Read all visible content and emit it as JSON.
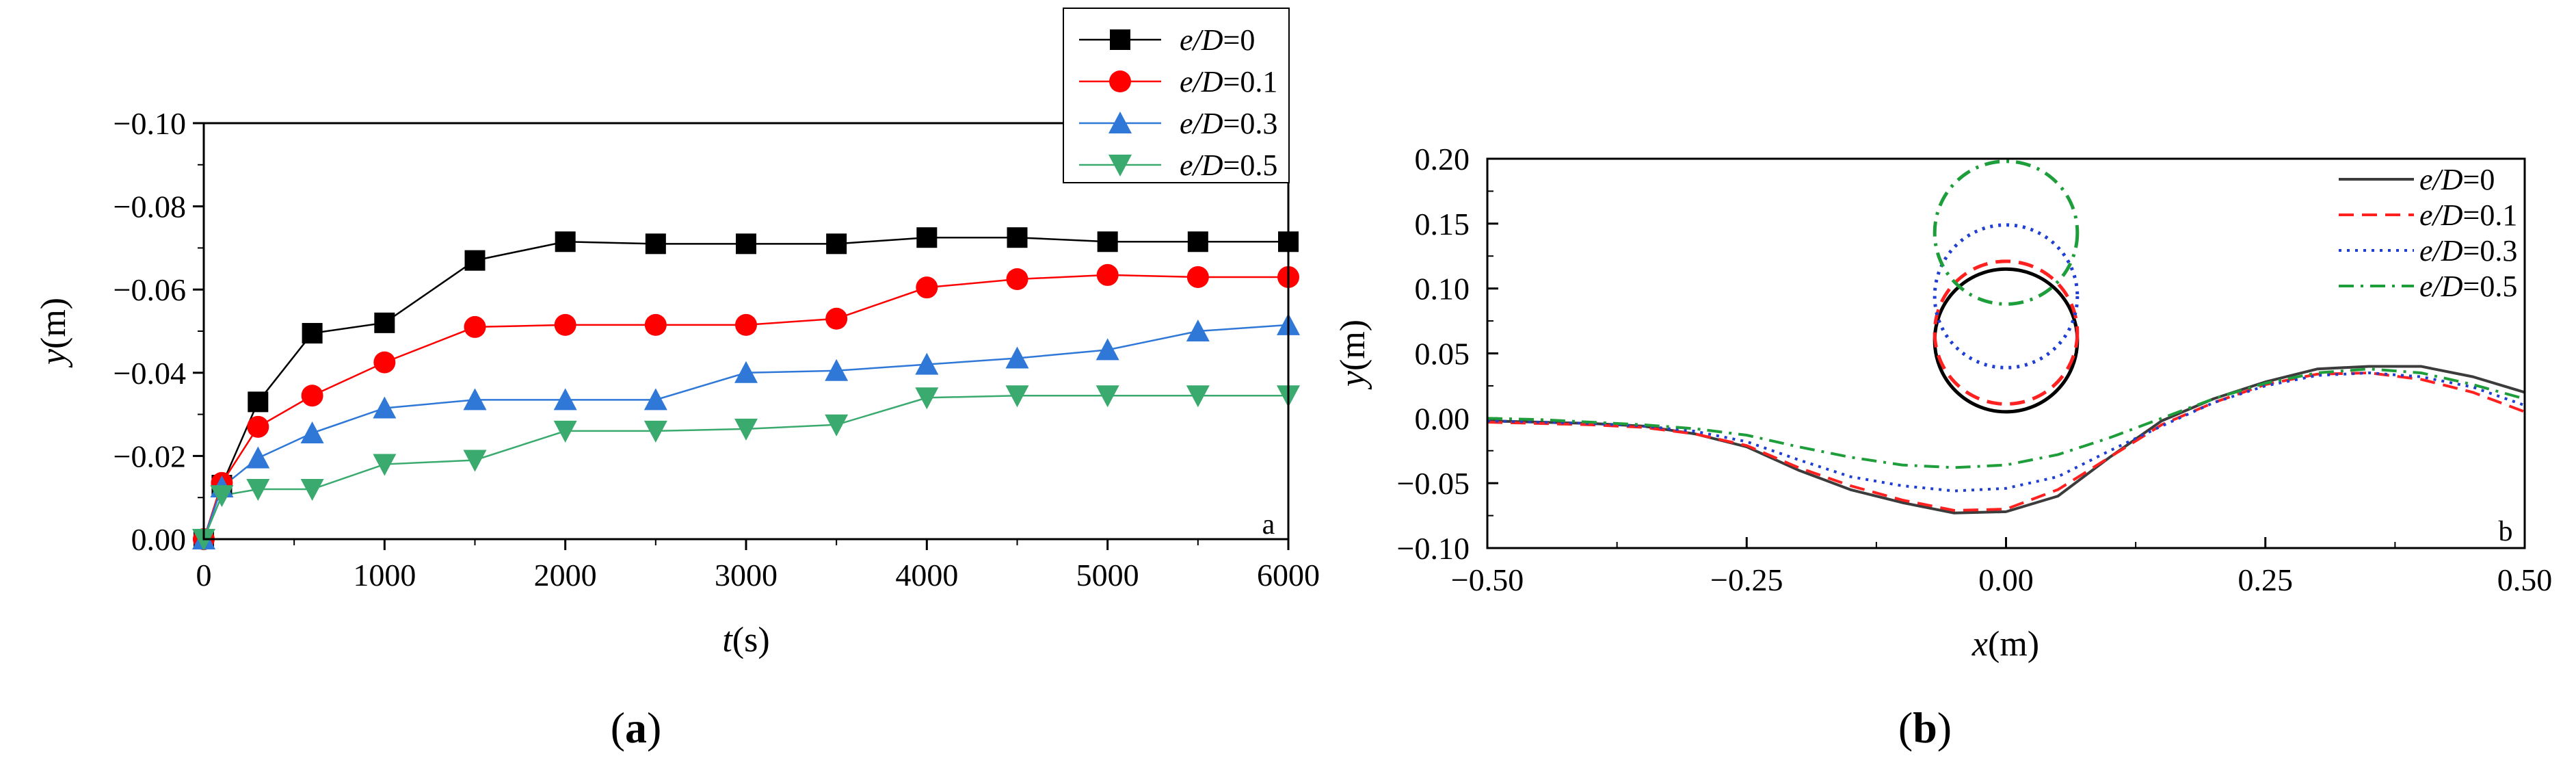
{
  "chart_data": [
    {
      "type": "line",
      "panel_tag": "a",
      "caption": {
        "open": "(",
        "letter": "a",
        "close": ")"
      },
      "xlabel": {
        "var": "t",
        "unit": "(s)"
      },
      "ylabel": {
        "var": "y",
        "unit": "(m)"
      },
      "xlim": [
        0,
        6000
      ],
      "ylim": [
        0.0,
        -0.1
      ],
      "xticks": [
        0,
        1000,
        2000,
        3000,
        4000,
        5000,
        6000
      ],
      "xtick_labels": [
        "0",
        "1000",
        "2000",
        "3000",
        "4000",
        "5000",
        "6000"
      ],
      "yticks": [
        0.0,
        -0.02,
        -0.04,
        -0.06,
        -0.08,
        -0.1
      ],
      "ytick_labels": [
        "0.00",
        "−0.02",
        "−0.04",
        "−0.06",
        "−0.08",
        "−0.10"
      ],
      "legend_position": "top-right",
      "x": [
        0,
        100,
        300,
        600,
        1000,
        1500,
        2000,
        2500,
        3000,
        3500,
        4000,
        4500,
        5000,
        5500,
        6000
      ],
      "series": [
        {
          "name": "e/D=0",
          "label_var": "e/D",
          "label_val": "=0",
          "color": "#000000",
          "marker": "square",
          "values": [
            0.0,
            -0.013,
            -0.033,
            -0.0495,
            -0.052,
            -0.067,
            -0.0715,
            -0.071,
            -0.071,
            -0.071,
            -0.0725,
            -0.0725,
            -0.0715,
            -0.0715,
            -0.0715
          ]
        },
        {
          "name": "e/D=0.1",
          "label_var": "e/D",
          "label_val": "=0.1",
          "color": "#ff0000",
          "marker": "circle",
          "values": [
            0.0,
            -0.0135,
            -0.027,
            -0.0345,
            -0.0425,
            -0.051,
            -0.0515,
            -0.0515,
            -0.0515,
            -0.053,
            -0.0605,
            -0.0625,
            -0.0635,
            -0.063,
            -0.063
          ]
        },
        {
          "name": "e/D=0.3",
          "label_var": "e/D",
          "label_val": "=0.3",
          "color": "#2f78d8",
          "marker": "triangle-up",
          "values": [
            0.0,
            -0.0125,
            -0.0195,
            -0.0255,
            -0.0315,
            -0.0335,
            -0.0335,
            -0.0335,
            -0.04,
            -0.0405,
            -0.042,
            -0.0435,
            -0.0455,
            -0.05,
            -0.0515
          ]
        },
        {
          "name": "e/D=0.5",
          "label_var": "e/D",
          "label_val": "=0.5",
          "color": "#3aaa6e",
          "marker": "triangle-down",
          "values": [
            0.0,
            -0.0105,
            -0.012,
            -0.012,
            -0.018,
            -0.019,
            -0.026,
            -0.026,
            -0.0265,
            -0.0275,
            -0.034,
            -0.0345,
            -0.0345,
            -0.0345,
            -0.0345
          ]
        }
      ]
    },
    {
      "type": "line",
      "panel_tag": "b",
      "caption": {
        "open": "(",
        "letter": "b",
        "close": ")"
      },
      "xlabel": {
        "var": "x",
        "unit": "(m)"
      },
      "ylabel": {
        "var": "y",
        "unit": "(m)"
      },
      "xlim": [
        -0.5,
        0.5
      ],
      "ylim": [
        -0.1,
        0.2
      ],
      "xticks": [
        -0.5,
        -0.25,
        0.0,
        0.25,
        0.5
      ],
      "xtick_labels": [
        "−0.50",
        "−0.25",
        "0.00",
        "0.25",
        "0.50"
      ],
      "yticks": [
        -0.1,
        -0.05,
        0.0,
        0.05,
        0.1,
        0.15,
        0.2
      ],
      "ytick_labels": [
        "−0.10",
        "−0.05",
        "0.00",
        "0.05",
        "0.10",
        "0.15",
        "0.20"
      ],
      "legend_position": "top-right",
      "pipe_diameter": 0.11,
      "x": [
        -0.5,
        -0.45,
        -0.4,
        -0.35,
        -0.3,
        -0.25,
        -0.2,
        -0.15,
        -0.1,
        -0.05,
        0.0,
        0.05,
        0.1,
        0.15,
        0.2,
        0.25,
        0.3,
        0.35,
        0.4,
        0.45,
        0.5
      ],
      "series": [
        {
          "name": "e/D=0",
          "label_var": "e/D",
          "label_val": "=0",
          "color": "#3c3c3c",
          "dash": "solid",
          "pipe_center_y": 0.06,
          "values": [
            -0.002,
            -0.003,
            -0.004,
            -0.006,
            -0.012,
            -0.022,
            -0.04,
            -0.055,
            -0.065,
            -0.073,
            -0.072,
            -0.06,
            -0.03,
            -0.002,
            0.015,
            0.028,
            0.038,
            0.04,
            0.04,
            0.032,
            0.02
          ]
        },
        {
          "name": "e/D=0.1",
          "label_var": "e/D",
          "label_val": "=0.1",
          "color": "#ff2020",
          "dash": "dashed",
          "pipe_center_y": 0.066,
          "values": [
            -0.003,
            -0.004,
            -0.005,
            -0.007,
            -0.012,
            -0.021,
            -0.038,
            -0.052,
            -0.063,
            -0.071,
            -0.07,
            -0.055,
            -0.03,
            -0.005,
            0.012,
            0.026,
            0.034,
            0.035,
            0.03,
            0.02,
            0.005
          ]
        },
        {
          "name": "e/D=0.3",
          "label_var": "e/D",
          "label_val": "=0.3",
          "color": "#1f3fd4",
          "dash": "dotted",
          "pipe_center_y": 0.094,
          "values": [
            -0.002,
            -0.003,
            -0.004,
            -0.006,
            -0.01,
            -0.018,
            -0.032,
            -0.045,
            -0.052,
            -0.056,
            -0.054,
            -0.045,
            -0.025,
            -0.006,
            0.012,
            0.025,
            0.033,
            0.035,
            0.032,
            0.024,
            0.01
          ]
        },
        {
          "name": "e/D=0.5",
          "label_var": "e/D",
          "label_val": "=0.5",
          "color": "#1e9e3a",
          "dash": "dashdot",
          "pipe_center_y": 0.143,
          "values": [
            0.0,
            -0.001,
            -0.003,
            -0.005,
            -0.008,
            -0.013,
            -0.022,
            -0.03,
            -0.036,
            -0.038,
            -0.036,
            -0.028,
            -0.015,
            0.0,
            0.015,
            0.027,
            0.035,
            0.038,
            0.035,
            0.026,
            0.015
          ]
        }
      ]
    }
  ]
}
